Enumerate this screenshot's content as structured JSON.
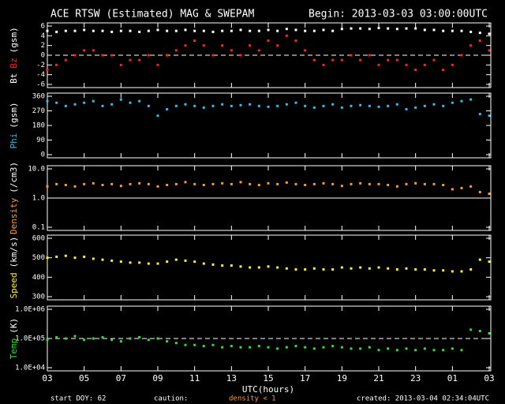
{
  "header": {
    "title": "ACE RTSW (Estimated) MAG & SWEPAM",
    "begin": "Begin: 2013-03-03 03:00:00UTC"
  },
  "footer": {
    "start": "start DOY:  62",
    "caution": "caution:",
    "caution_note": "density < 1",
    "caution_color": "#ff9933",
    "created": "created: 2013-03-04 02:34:04UTC"
  },
  "xlabel": "UTC(hours)",
  "chart_data": [
    {
      "type": "scatter",
      "ylabel": "(gsm)",
      "ylim": [
        -6,
        6
      ],
      "yticks": [
        -6,
        -4,
        -2,
        0,
        2,
        4,
        6
      ],
      "hline": 0,
      "hline_style": "dashed",
      "x": [
        0,
        0.5,
        1,
        1.5,
        2,
        2.5,
        3,
        3.5,
        4,
        4.5,
        5,
        5.5,
        6,
        6.5,
        7,
        7.5,
        8,
        8.5,
        9,
        9.5,
        10,
        10.5,
        11,
        11.5,
        12,
        12.5,
        13,
        13.5,
        14,
        14.5,
        15,
        15.5,
        16,
        16.5,
        17,
        17.5,
        18,
        18.5,
        19,
        19.5,
        20,
        20.5,
        21,
        21.5,
        22,
        22.5,
        23,
        23.5,
        24
      ],
      "series": [
        {
          "name": "Bt",
          "color": "#ffffff",
          "values": [
            5,
            4.8,
            5,
            5,
            5.2,
            5,
            5,
            4.8,
            5,
            5,
            4.8,
            5,
            5.2,
            5,
            5,
            5.2,
            5,
            5,
            4.8,
            5,
            5,
            5.2,
            5,
            5,
            5.2,
            5,
            5.4,
            5.2,
            5,
            5,
            5.2,
            5,
            5.4,
            5.5,
            5.5,
            5.4,
            5.6,
            5.5,
            5.4,
            5.5,
            5.5,
            5.2,
            5.2,
            5,
            5,
            5,
            4.8,
            4.6,
            4.4
          ]
        },
        {
          "name": "Bz",
          "color": "#ff2222",
          "values": [
            -3,
            -2,
            -1,
            0,
            1,
            1,
            0,
            0,
            -2,
            -1,
            -1,
            0,
            -2,
            0,
            1,
            2,
            3,
            2,
            0,
            2,
            1,
            0,
            2,
            1,
            3,
            2,
            4,
            3,
            1,
            -1,
            -2,
            -1,
            -1,
            0,
            -1,
            0,
            -2,
            -1,
            -1,
            -2,
            -3,
            -2,
            -1,
            -3,
            -2,
            0,
            2,
            3,
            1
          ]
        }
      ]
    },
    {
      "type": "scatter",
      "ylabel": "(gsm)",
      "ylim": [
        0,
        360
      ],
      "yticks": [
        0,
        90,
        180,
        270,
        360
      ],
      "x": [
        0,
        0.5,
        1,
        1.5,
        2,
        2.5,
        3,
        3.5,
        4,
        4.5,
        5,
        5.5,
        6,
        6.5,
        7,
        7.5,
        8,
        8.5,
        9,
        9.5,
        10,
        10.5,
        11,
        11.5,
        12,
        12.5,
        13,
        13.5,
        14,
        14.5,
        15,
        15.5,
        16,
        16.5,
        17,
        17.5,
        18,
        18.5,
        19,
        19.5,
        20,
        20.5,
        21,
        21.5,
        22,
        22.5,
        23,
        23.5,
        24
      ],
      "series": [
        {
          "name": "Phi",
          "color": "#33bbee",
          "values": [
            330,
            320,
            300,
            310,
            320,
            330,
            300,
            310,
            340,
            320,
            330,
            300,
            240,
            280,
            300,
            310,
            300,
            290,
            300,
            310,
            300,
            305,
            310,
            300,
            295,
            300,
            310,
            320,
            300,
            290,
            300,
            310,
            290,
            300,
            305,
            300,
            295,
            300,
            310,
            280,
            290,
            300,
            310,
            300,
            320,
            330,
            340,
            250,
            240
          ]
        }
      ]
    },
    {
      "type": "scatter",
      "ylabel": "(/cm3)",
      "log": true,
      "ylim": [
        0.1,
        10
      ],
      "yticks": [
        0.1,
        {
          "value": 1,
          "label": "1.0"
        },
        {
          "value": 10,
          "label": "10.0"
        }
      ],
      "hline": 1,
      "hline_style": "solid",
      "x": [
        0,
        0.5,
        1,
        1.5,
        2,
        2.5,
        3,
        3.5,
        4,
        4.5,
        5,
        5.5,
        6,
        6.5,
        7,
        7.5,
        8,
        8.5,
        9,
        9.5,
        10,
        10.5,
        11,
        11.5,
        12,
        12.5,
        13,
        13.5,
        14,
        14.5,
        15,
        15.5,
        16,
        16.5,
        17,
        17.5,
        18,
        18.5,
        19,
        19.5,
        20,
        20.5,
        21,
        21.5,
        22,
        22.5,
        23,
        23.5,
        24
      ],
      "series": [
        {
          "name": "Density",
          "color": "#ff9933",
          "values": [
            2.5,
            3,
            2.8,
            2.5,
            3,
            3.2,
            2.8,
            3,
            2.6,
            3,
            3.2,
            3,
            2.5,
            2.8,
            3,
            3.5,
            3,
            2.8,
            3,
            3.2,
            3,
            3.5,
            3,
            2.8,
            3.2,
            3,
            3.4,
            3,
            2.8,
            3,
            3.2,
            3,
            2.6,
            3,
            3.2,
            3,
            3,
            2.8,
            2.5,
            3,
            3.2,
            3,
            3,
            2.8,
            2,
            2.2,
            2.5,
            1.6,
            1.4
          ]
        }
      ]
    },
    {
      "type": "scatter",
      "ylabel": "(km/s)",
      "ylim": [
        300,
        600
      ],
      "yticks": [
        300,
        400,
        500,
        600
      ],
      "x": [
        0,
        0.5,
        1,
        1.5,
        2,
        2.5,
        3,
        3.5,
        4,
        4.5,
        5,
        5.5,
        6,
        6.5,
        7,
        7.5,
        8,
        8.5,
        9,
        9.5,
        10,
        10.5,
        11,
        11.5,
        12,
        12.5,
        13,
        13.5,
        14,
        14.5,
        15,
        15.5,
        16,
        16.5,
        17,
        17.5,
        18,
        18.5,
        19,
        19.5,
        20,
        20.5,
        21,
        21.5,
        22,
        22.5,
        23,
        23.5,
        24
      ],
      "series": [
        {
          "name": "Speed",
          "color": "#ffee33",
          "values": [
            500,
            505,
            510,
            500,
            505,
            495,
            490,
            485,
            480,
            475,
            475,
            470,
            470,
            480,
            490,
            485,
            480,
            470,
            465,
            460,
            460,
            455,
            450,
            450,
            455,
            450,
            445,
            440,
            440,
            445,
            440,
            440,
            450,
            445,
            450,
            445,
            450,
            445,
            440,
            445,
            440,
            440,
            435,
            435,
            430,
            430,
            440,
            490,
            480
          ]
        }
      ]
    },
    {
      "type": "scatter",
      "ylabel": "(K)",
      "log": true,
      "ylim": [
        10000,
        1000000
      ],
      "yticks": [
        {
          "value": 10000,
          "label": "1.0E+04"
        },
        {
          "value": 100000,
          "label": "1.0E+05"
        },
        {
          "value": 1000000,
          "label": "1.0E+06"
        }
      ],
      "hline": 100000,
      "hline_style": "dashed",
      "xlim": [
        0,
        24
      ],
      "xticks": [
        {
          "value": 0,
          "label": "03"
        },
        {
          "value": 2,
          "label": "05"
        },
        {
          "value": 4,
          "label": "07"
        },
        {
          "value": 6,
          "label": "09"
        },
        {
          "value": 8,
          "label": "11"
        },
        {
          "value": 10,
          "label": "13"
        },
        {
          "value": 12,
          "label": "15"
        },
        {
          "value": 14,
          "label": "17"
        },
        {
          "value": 16,
          "label": "19"
        },
        {
          "value": 18,
          "label": "21"
        },
        {
          "value": 20,
          "label": "23"
        },
        {
          "value": 22,
          "label": "01"
        },
        {
          "value": 24,
          "label": "03"
        }
      ],
      "x": [
        0,
        0.5,
        1,
        1.5,
        2,
        2.5,
        3,
        3.5,
        4,
        4.5,
        5,
        5.5,
        6,
        6.5,
        7,
        7.5,
        8,
        8.5,
        9,
        9.5,
        10,
        10.5,
        11,
        11.5,
        12,
        12.5,
        13,
        13.5,
        14,
        14.5,
        15,
        15.5,
        16,
        16.5,
        17,
        17.5,
        18,
        18.5,
        19,
        19.5,
        20,
        20.5,
        21,
        21.5,
        22,
        22.5,
        23,
        23.5,
        24
      ],
      "series": [
        {
          "name": "Temp",
          "color": "#33dd33",
          "values": [
            90000,
            110000,
            100000,
            120000,
            90000,
            100000,
            110000,
            90000,
            80000,
            100000,
            110000,
            90000,
            100000,
            80000,
            70000,
            60000,
            60000,
            55000,
            60000,
            50000,
            55000,
            50000,
            50000,
            55000,
            50000,
            45000,
            50000,
            55000,
            50000,
            45000,
            50000,
            55000,
            50000,
            45000,
            45000,
            50000,
            40000,
            45000,
            40000,
            45000,
            40000,
            45000,
            40000,
            40000,
            45000,
            40000,
            200000,
            180000,
            150000
          ]
        }
      ]
    }
  ]
}
